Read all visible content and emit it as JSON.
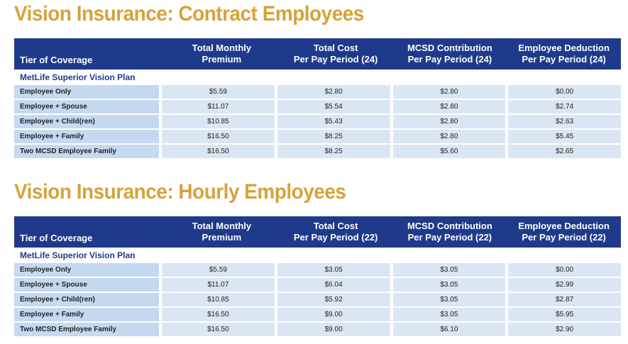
{
  "sections": [
    {
      "title": "Vision Insurance: Contract Employees",
      "headers": {
        "tier": "Tier of Coverage",
        "premium": [
          "Total Monthly",
          "Premium"
        ],
        "cost": [
          "Total Cost",
          "Per Pay Period (24)"
        ],
        "mcsd": [
          "MCSD Contribution",
          "Per Pay Period (24)"
        ],
        "deduction": [
          "Employee Deduction",
          "Per Pay Period (24)"
        ]
      },
      "plan": "MetLife Superior Vision Plan",
      "rows": [
        [
          "Employee Only",
          "$5.59",
          "$2.80",
          "$2.80",
          "$0.00"
        ],
        [
          "Employee + Spouse",
          "$11.07",
          "$5.54",
          "$2.80",
          "$2.74"
        ],
        [
          "Employee + Child(ren)",
          "$10.85",
          "$5.43",
          "$2.80",
          "$2.63"
        ],
        [
          "Employee + Family",
          "$16.50",
          "$8.25",
          "$2.80",
          "$5.45"
        ],
        [
          "Two MCSD Employee Family",
          "$16.50",
          "$8.25",
          "$5.60",
          "$2.65"
        ]
      ]
    },
    {
      "title": "Vision Insurance: Hourly Employees",
      "headers": {
        "tier": "Tier of Coverage",
        "premium": [
          "Total Monthly",
          "Premium"
        ],
        "cost": [
          "Total Cost",
          "Per Pay Period (22)"
        ],
        "mcsd": [
          "MCSD Contribution",
          "Per Pay Period (22)"
        ],
        "deduction": [
          "Employee Deduction",
          "Per Pay Period (22)"
        ]
      },
      "plan": "MetLife Superior Vision Plan",
      "rows": [
        [
          "Employee Only",
          "$5.59",
          "$3.05",
          "$3.05",
          "$0.00"
        ],
        [
          "Employee + Spouse",
          "$11.07",
          "$6.04",
          "$3.05",
          "$2.99"
        ],
        [
          "Employee + Child(ren)",
          "$10.85",
          "$5.92",
          "$3.05",
          "$2.87"
        ],
        [
          "Employee + Family",
          "$16.50",
          "$9.00",
          "$3.05",
          "$5.95"
        ],
        [
          "Two MCSD Employee Family",
          "$16.50",
          "$9.00",
          "$6.10",
          "$2.90"
        ]
      ]
    }
  ]
}
